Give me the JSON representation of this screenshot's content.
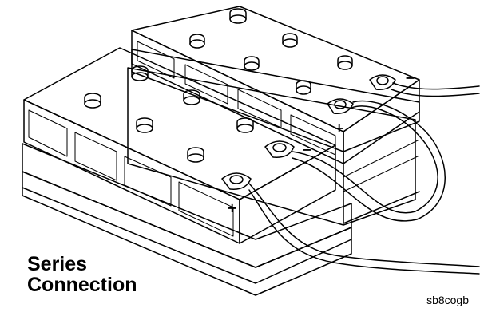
{
  "figure": {
    "title_lines": [
      "Series",
      "Connection"
    ],
    "figure_id": "sb8cogb",
    "terminal_marks": {
      "rear_battery": {
        "positive": "+",
        "negative": "−"
      },
      "front_battery": {
        "positive": "+",
        "negative": "−"
      }
    }
  }
}
